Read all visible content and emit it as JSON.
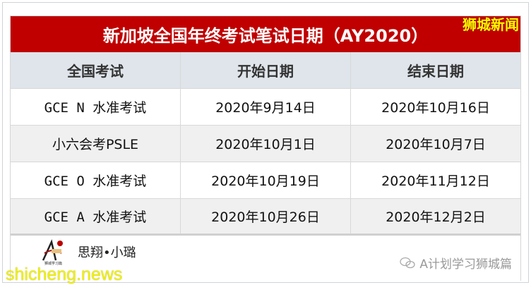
{
  "title": "新加坡全国年终考试笔试日期（AY2020）",
  "brand": "狮城新闻",
  "headers": [
    "全国考试",
    "开始日期",
    "结束日期"
  ],
  "rows": [
    [
      "GCE N 水准考试",
      "2020年9月14日",
      "2020年10月16日"
    ],
    [
      "小六会考PSLE",
      "2020年10月1日",
      "2020年10月7日"
    ],
    [
      "GCE O 水准考试",
      "2020年10月19日",
      "2020年11月12日"
    ],
    [
      "GCE A 水准考试",
      "2020年10月26日",
      "2020年12月2日"
    ]
  ],
  "footer": {
    "signature": "思翔•小璐",
    "logo_text": "狮城学习篇",
    "wechat_account": "A计划学习狮城篇",
    "wechat_icon": "wechat-icon"
  },
  "watermark": "shicheng.news",
  "colors": {
    "title_bg": "#c00000",
    "brand": "#ffff00",
    "header_bg": "#dfe5ea"
  }
}
